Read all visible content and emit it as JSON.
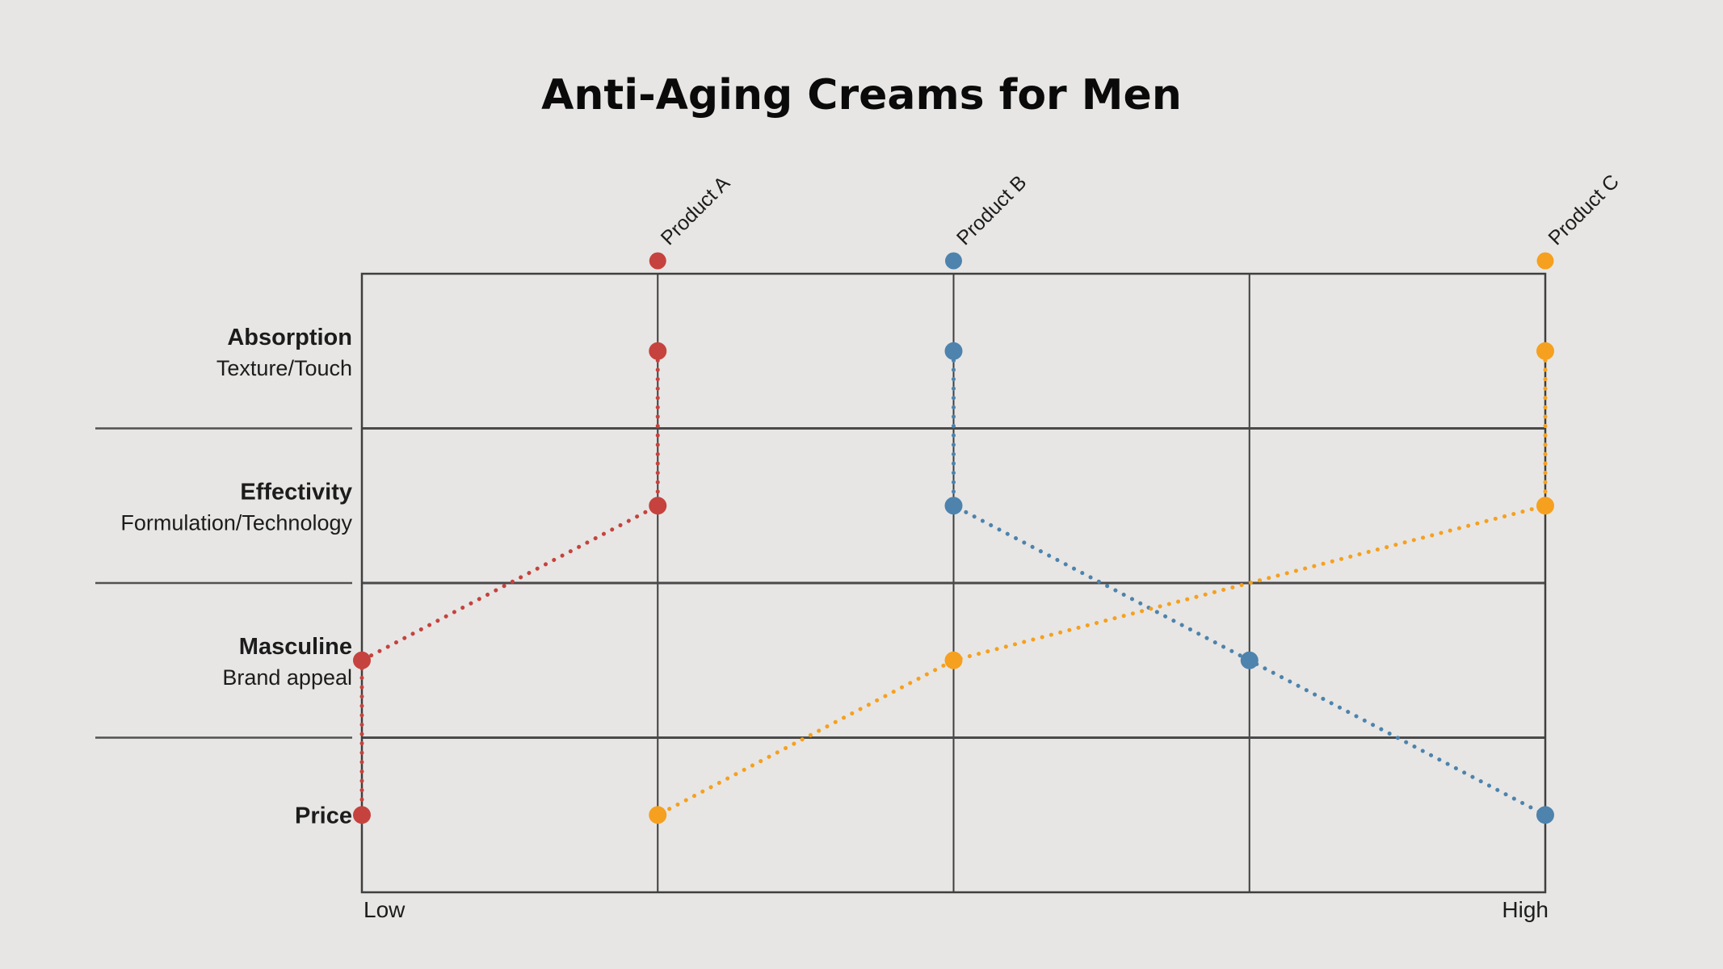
{
  "title": "Anti-Aging Creams for Men",
  "chart_data": {
    "type": "line",
    "subtype": "parallel-coordinates",
    "title": "Anti-Aging Creams for Men",
    "categories": [
      {
        "label": "Absorption",
        "sublabel": "Texture/Touch"
      },
      {
        "label": "Effectivity",
        "sublabel": "Formulation/Technology"
      },
      {
        "label": "Masculine",
        "sublabel": "Brand appeal"
      },
      {
        "label": "Price",
        "sublabel": ""
      }
    ],
    "x_axis": {
      "min_label": "Low",
      "max_label": "High",
      "min": 0,
      "max": 4,
      "gridlines": 5
    },
    "series": [
      {
        "name": "Product A",
        "color": "#c6423e",
        "header_position": 1,
        "values": [
          1,
          1,
          0,
          0
        ]
      },
      {
        "name": "Product B",
        "color": "#4d83ad",
        "header_position": 2,
        "values": [
          2,
          2,
          3,
          4
        ]
      },
      {
        "name": "Product C",
        "color": "#f6a01f",
        "header_position": 4,
        "values": [
          4,
          4,
          2,
          1
        ]
      }
    ],
    "style": {
      "line_style": "dotted",
      "marker": "circle",
      "grid": true,
      "legend_position": "top-markers"
    }
  },
  "colors": {
    "background": "#e7e6e4",
    "grid_line": "#3f3f3f",
    "row_separator": "#4a4a4a",
    "label_separator": "#515151",
    "title_text": "#0a0a0a",
    "label_text": "#1c1c1c"
  }
}
